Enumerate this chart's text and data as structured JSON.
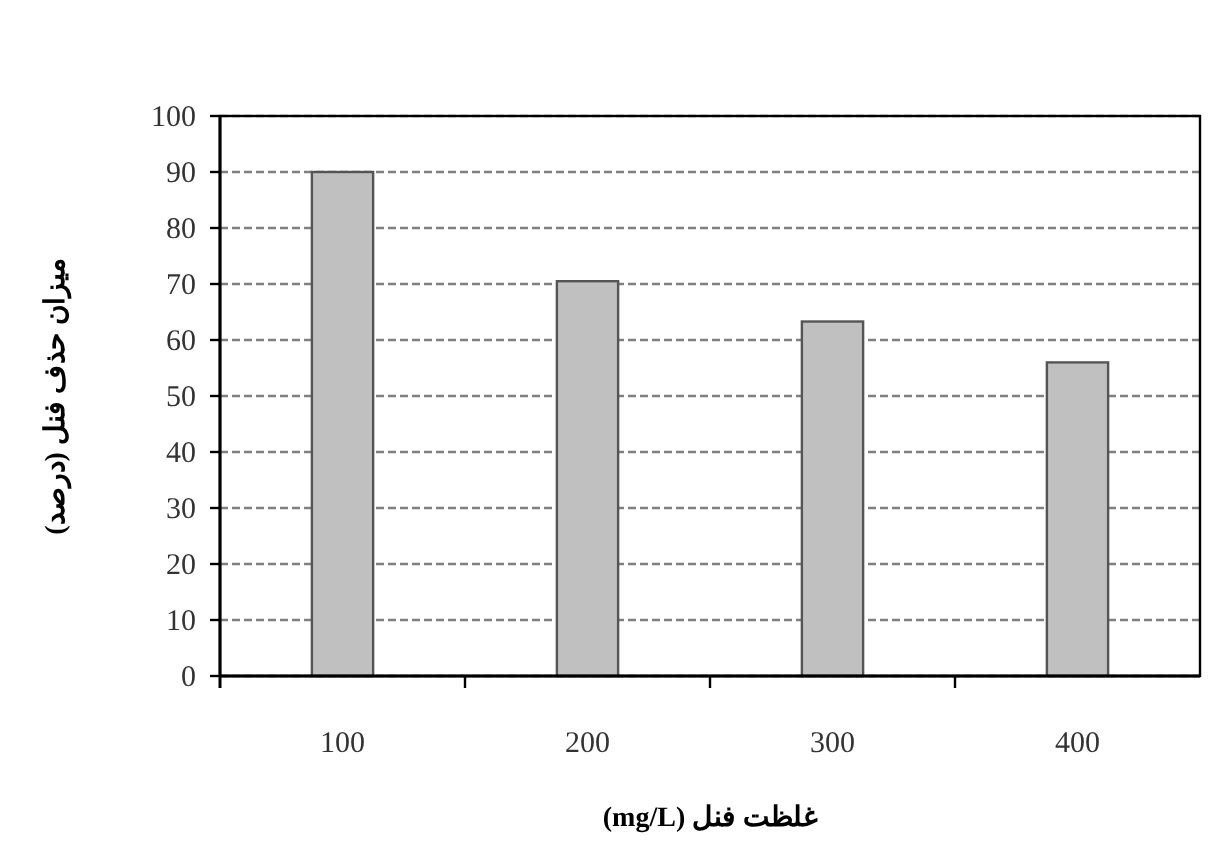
{
  "chart_data": {
    "type": "bar",
    "xlabel": "غلظت فنل (mg/L)",
    "ylabel": "میزان حذف فنل (درصد)",
    "categories": [
      "100",
      "200",
      "300",
      "400"
    ],
    "values": [
      90,
      70.5,
      63.3,
      56
    ],
    "color": "#c0c0c0",
    "ylim": [
      0,
      100
    ],
    "yticks": [
      0,
      10,
      20,
      30,
      40,
      50,
      60,
      70,
      80,
      90,
      100
    ],
    "grid": "y"
  }
}
